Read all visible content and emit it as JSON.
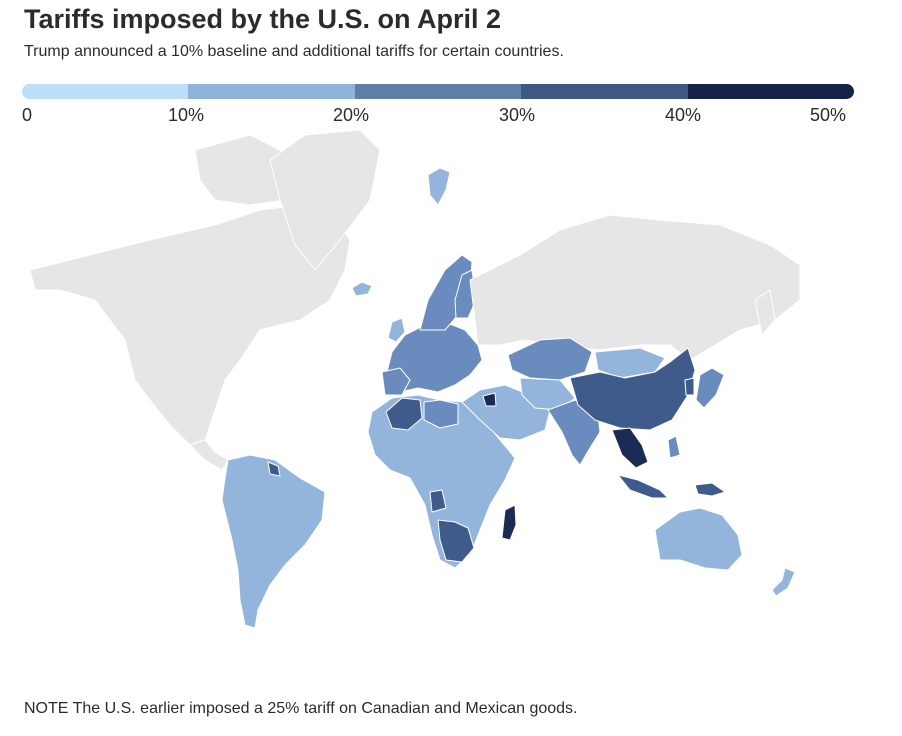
{
  "title": "Tariffs imposed by the U.S. on April 2",
  "subtitle": "Trump announced a 10% baseline and additional tariffs for certain countries.",
  "legend": {
    "colors": [
      "#bde0fa",
      "#8fb3d9",
      "#607fa7",
      "#3e5884",
      "#152349"
    ],
    "ticks": [
      "0",
      "10%",
      "20%",
      "30%",
      "40%",
      "50%"
    ]
  },
  "map_colors": {
    "no_tariff": "#e6e6e6",
    "tier_10": "#93b5dc",
    "tier_20": "#6a8bbd",
    "tier_30": "#3f5b8c",
    "tier_40": "#1b2b56",
    "border": "#ffffff"
  },
  "note": "NOTE The U.S. earlier imposed a 25% tariff on Canadian and Mexican goods."
}
